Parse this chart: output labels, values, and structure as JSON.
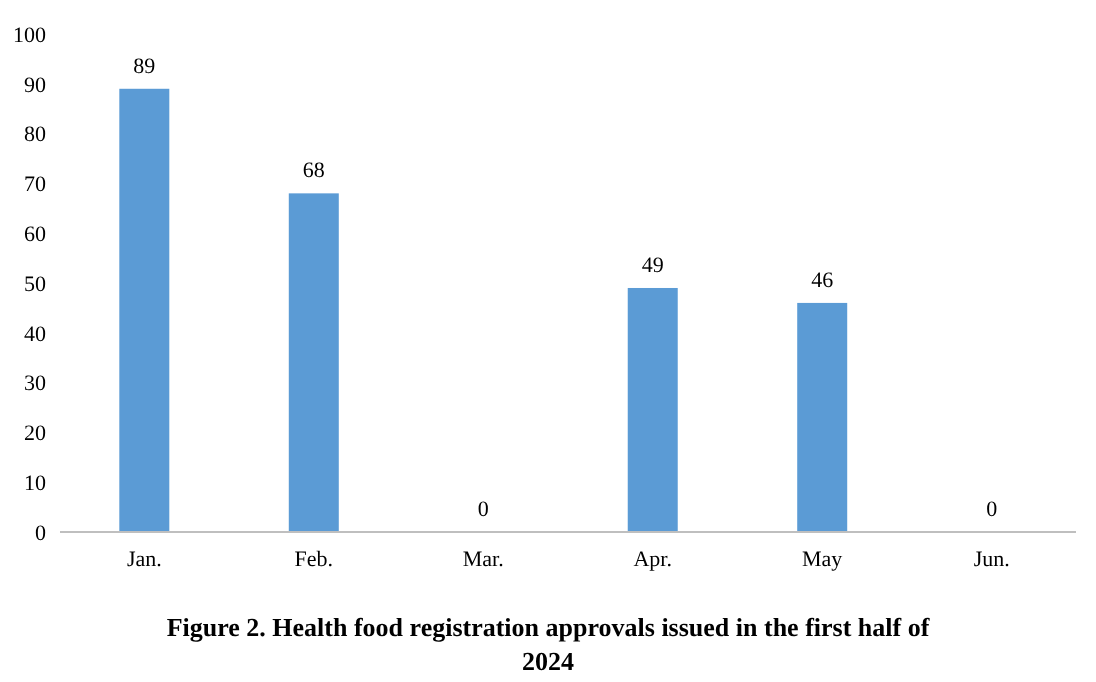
{
  "chart_data": {
    "type": "bar",
    "title": "Figure 2. Health food registration approvals issued in the first half of 2024",
    "categories": [
      "Jan.",
      "Feb.",
      "Mar.",
      "Apr.",
      "May",
      "Jun."
    ],
    "values": [
      89,
      68,
      0,
      49,
      46,
      0
    ],
    "color": "#5b9bd5",
    "ylim": [
      0,
      100
    ],
    "yticks": [
      0,
      10,
      20,
      30,
      40,
      50,
      60,
      70,
      80,
      90,
      100
    ],
    "data_labels": true
  }
}
